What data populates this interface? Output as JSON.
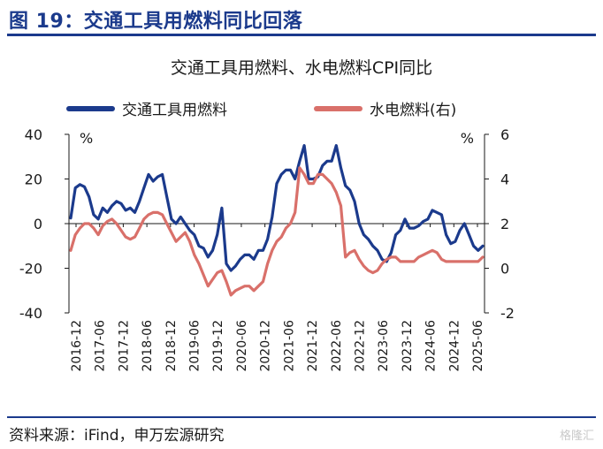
{
  "figure": {
    "title": "图 19：交通工具用燃料同比回落",
    "source": "资料来源：iFind，申万宏源研究",
    "watermark": "格隆汇"
  },
  "colors": {
    "primary": "#1b3a8c",
    "secondary": "#d9706a",
    "axis": "#1a1a1a"
  },
  "chart_data": {
    "type": "line",
    "title": "交通工具用燃料、水电燃料CPI同比",
    "xlabel": "",
    "ylabel": "%",
    "ylabel_right": "%",
    "ylim": [
      -40,
      40
    ],
    "ylim_right": [
      -2,
      6
    ],
    "yticks": [
      40,
      20,
      0,
      -20,
      -40
    ],
    "yticks_right": [
      6,
      4,
      2,
      0,
      -2
    ],
    "legend_position": "top",
    "x_tick_labels": [
      "2016-12",
      "2017-06",
      "2017-12",
      "2018-06",
      "2018-12",
      "2019-06",
      "2019-12",
      "2020-06",
      "2020-12",
      "2021-06",
      "2021-12",
      "2022-06",
      "2022-12",
      "2023-06",
      "2023-12",
      "2024-06",
      "2024-12",
      "2025-06"
    ],
    "x_start": "2016-12",
    "series": [
      {
        "name": "交通工具用燃料",
        "axis": "left",
        "color": "#1b3a8c",
        "values": [
          2.5,
          16,
          17.5,
          16.5,
          12,
          4,
          2,
          7,
          5,
          8,
          10,
          9,
          6,
          7,
          5,
          10,
          16,
          22,
          19,
          21,
          22,
          12,
          2,
          0,
          3,
          0,
          -3,
          -5,
          -10,
          -11,
          -15,
          -12,
          -5,
          7,
          -18,
          -21,
          -19,
          -16,
          -14,
          -14,
          -16,
          -12,
          -12,
          -7,
          3,
          18,
          22,
          24,
          24,
          20,
          28,
          35,
          20,
          20,
          21,
          26,
          28,
          28,
          35,
          25,
          17,
          15,
          10,
          0,
          -5,
          -7,
          -10,
          -12,
          -16,
          -17,
          -13,
          -5,
          -3,
          2,
          -2,
          -2,
          -1,
          1,
          2,
          6,
          5,
          4,
          -5,
          -9,
          -8,
          -3,
          0,
          -5,
          -10,
          -12,
          -10
        ]
      },
      {
        "name": "水电燃料(右)",
        "axis": "right",
        "color": "#d9706a",
        "values": [
          0.8,
          1.5,
          1.8,
          2.0,
          2.0,
          1.8,
          1.5,
          1.9,
          2.1,
          2.2,
          2.0,
          1.7,
          1.4,
          1.3,
          1.4,
          1.8,
          2.2,
          2.4,
          2.5,
          2.5,
          2.4,
          2.0,
          1.6,
          1.2,
          1.4,
          1.6,
          1.2,
          0.6,
          0.2,
          -0.3,
          -0.8,
          -0.5,
          -0.2,
          -0.1,
          -0.6,
          -1.2,
          -1.0,
          -0.9,
          -0.8,
          -0.8,
          -1.0,
          -0.8,
          -0.6,
          0.2,
          0.8,
          1.2,
          1.4,
          1.8,
          2.0,
          2.5,
          4.5,
          4.2,
          3.8,
          3.8,
          4.2,
          4.2,
          4.0,
          3.8,
          3.4,
          2.8,
          0.5,
          0.7,
          0.8,
          0.4,
          0.1,
          -0.1,
          -0.2,
          -0.1,
          0.2,
          0.4,
          0.5,
          0.5,
          0.3,
          0.3,
          0.3,
          0.3,
          0.5,
          0.6,
          0.7,
          0.8,
          0.7,
          0.4,
          0.3,
          0.3,
          0.3,
          0.3,
          0.3,
          0.3,
          0.3,
          0.3,
          0.5
        ]
      }
    ]
  }
}
